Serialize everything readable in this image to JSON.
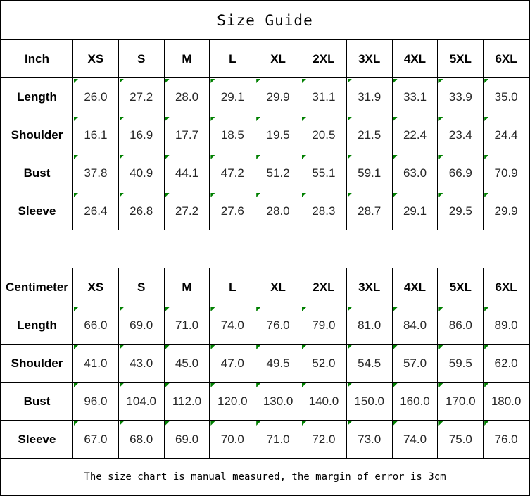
{
  "title": "Size Guide",
  "footer_note": "The size chart is manual measured, the margin of error is 3cm",
  "colors": {
    "flag_green": "#008000",
    "grid_line": "#000000"
  },
  "icons": {
    "corner_flag": "excel-style green number-stored-as-text corner triangle"
  },
  "chart_data": [
    {
      "type": "table",
      "title": "Size Guide",
      "unit_header": "Inch",
      "columns": [
        "Inch",
        "XS",
        "S",
        "M",
        "L",
        "XL",
        "2XL",
        "3XL",
        "4XL",
        "5XL",
        "6XL"
      ],
      "row_labels": [
        "Length",
        "Shoulder",
        "Bust",
        "Sleeve"
      ],
      "values": [
        [
          "26.0",
          "27.2",
          "28.0",
          "29.1",
          "29.9",
          "31.1",
          "31.9",
          "33.1",
          "33.9",
          "35.0"
        ],
        [
          "16.1",
          "16.9",
          "17.7",
          "18.5",
          "19.5",
          "20.5",
          "21.5",
          "22.4",
          "23.4",
          "24.4"
        ],
        [
          "37.8",
          "40.9",
          "44.1",
          "47.2",
          "51.2",
          "55.1",
          "59.1",
          "63.0",
          "66.9",
          "70.9"
        ],
        [
          "26.4",
          "26.8",
          "27.2",
          "27.6",
          "28.0",
          "28.3",
          "28.7",
          "29.1",
          "29.5",
          "29.9"
        ]
      ]
    },
    {
      "type": "table",
      "title": "Size Guide",
      "unit_header": "Centimeter",
      "columns": [
        "Centimeter",
        "XS",
        "S",
        "M",
        "L",
        "XL",
        "2XL",
        "3XL",
        "4XL",
        "5XL",
        "6XL"
      ],
      "row_labels": [
        "Length",
        "Shoulder",
        "Bust",
        "Sleeve"
      ],
      "values": [
        [
          "66.0",
          "69.0",
          "71.0",
          "74.0",
          "76.0",
          "79.0",
          "81.0",
          "84.0",
          "86.0",
          "89.0"
        ],
        [
          "41.0",
          "43.0",
          "45.0",
          "47.0",
          "49.5",
          "52.0",
          "54.5",
          "57.0",
          "59.5",
          "62.0"
        ],
        [
          "96.0",
          "104.0",
          "112.0",
          "120.0",
          "130.0",
          "140.0",
          "150.0",
          "160.0",
          "170.0",
          "180.0"
        ],
        [
          "67.0",
          "68.0",
          "69.0",
          "70.0",
          "71.0",
          "72.0",
          "73.0",
          "74.0",
          "75.0",
          "76.0"
        ]
      ]
    }
  ]
}
